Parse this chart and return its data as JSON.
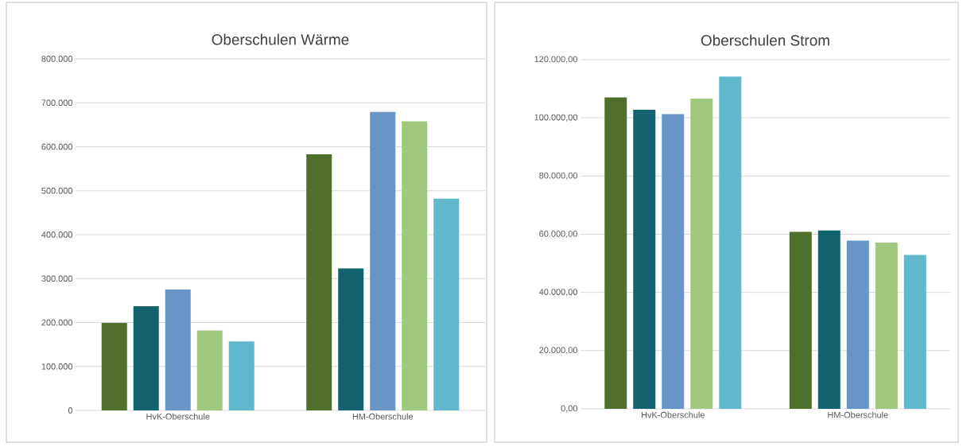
{
  "chart_data": [
    {
      "type": "bar",
      "title": "Oberschulen Wärme",
      "categories": [
        "HvK-Oberschule",
        "HM-Oberschule"
      ],
      "ylim": [
        0,
        800000
      ],
      "yticks": [
        {
          "value": 0,
          "label": "0"
        },
        {
          "value": 100000,
          "label": "100.000"
        },
        {
          "value": 200000,
          "label": "200.000"
        },
        {
          "value": 300000,
          "label": "300.000"
        },
        {
          "value": 400000,
          "label": "400.000"
        },
        {
          "value": 500000,
          "label": "500.000"
        },
        {
          "value": 600000,
          "label": "600.000"
        },
        {
          "value": 700000,
          "label": "700.000"
        },
        {
          "value": 800000,
          "label": "800.000"
        }
      ],
      "grid": true,
      "series": [
        {
          "color": "#4f6f2a",
          "values": [
            199000,
            583000
          ]
        },
        {
          "color": "#13626f",
          "values": [
            237000,
            323000
          ]
        },
        {
          "color": "#6994c8",
          "values": [
            275000,
            679000
          ]
        },
        {
          "color": "#9fc77d",
          "values": [
            182000,
            658000
          ]
        },
        {
          "color": "#5fb8cc",
          "values": [
            157000,
            482000
          ]
        }
      ]
    },
    {
      "type": "bar",
      "title": "Oberschulen Strom",
      "categories": [
        "HvK-Oberschule",
        "HM-Oberschule"
      ],
      "ylim": [
        0,
        120000
      ],
      "yticks": [
        {
          "value": 0,
          "label": "0,00"
        },
        {
          "value": 20000,
          "label": "20.000,00"
        },
        {
          "value": 40000,
          "label": "40.000,00"
        },
        {
          "value": 60000,
          "label": "60.000,00"
        },
        {
          "value": 80000,
          "label": "80.000,00"
        },
        {
          "value": 100000,
          "label": "100.000,00"
        },
        {
          "value": 120000,
          "label": "120.000,00"
        }
      ],
      "grid": true,
      "series": [
        {
          "color": "#4f6f2a",
          "values": [
            107000,
            60800
          ]
        },
        {
          "color": "#13626f",
          "values": [
            102800,
            61300
          ]
        },
        {
          "color": "#6994c8",
          "values": [
            101300,
            57800
          ]
        },
        {
          "color": "#9fc77d",
          "values": [
            106600,
            57100
          ]
        },
        {
          "color": "#5fb8cc",
          "values": [
            114200,
            52900
          ]
        }
      ]
    }
  ]
}
